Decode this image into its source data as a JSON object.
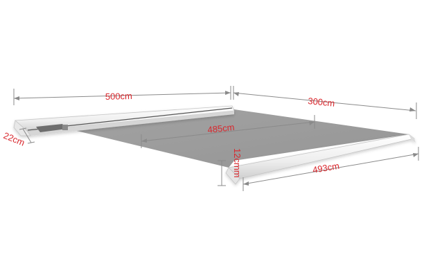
{
  "colors": {
    "dimension_text": "#d9262c",
    "dimension_line": "#8a8a8a",
    "fabric": "#9c9c9c",
    "frame": "#f2f2f2",
    "frame_edge": "#b8b8b8"
  },
  "dimensions": {
    "width_top": "500cm",
    "projection": "300cm",
    "inner_width": "485cm",
    "front_bar_width": "493cm",
    "cassette_height": "22cm",
    "front_bar_height": "12cmm"
  }
}
